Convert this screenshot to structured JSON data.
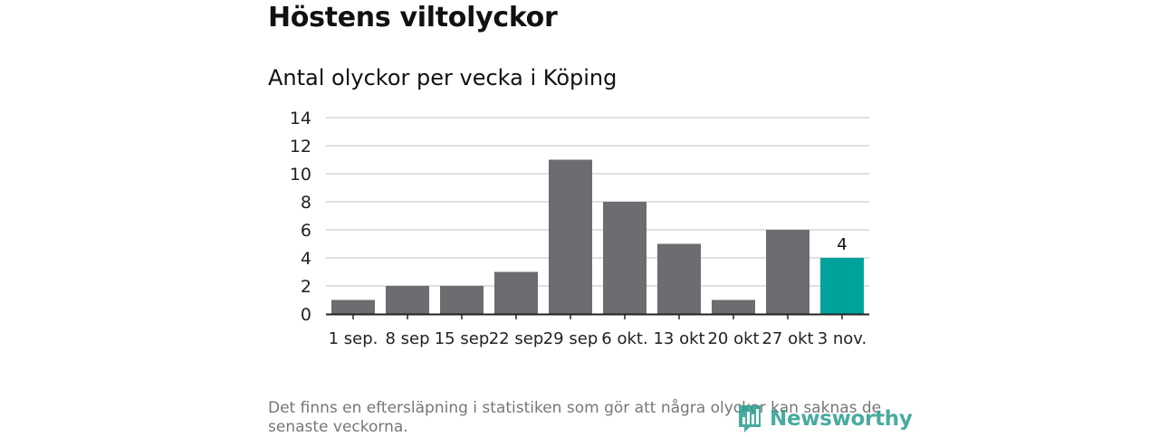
{
  "title": "Höstens viltolyckor",
  "subtitle": "Antal olyckor per vecka i Köping",
  "note": "Det finns en eftersläpning i statistiken som gör att några olyckor kan saknas de senaste veckorna.",
  "logo_text": "Newsworthy",
  "colors": {
    "bar": "#6d6c70",
    "highlight": "#00a39b",
    "grid": "#d6d6d6",
    "axis": "#222222"
  },
  "chart_data": {
    "type": "bar",
    "categories": [
      "1 sep.",
      "8 sep",
      "15 sep",
      "22 sep",
      "29 sep",
      "6 okt.",
      "13 okt",
      "20 okt",
      "27 okt",
      "3 nov."
    ],
    "values": [
      1,
      2,
      2,
      3,
      11,
      8,
      5,
      1,
      6,
      4
    ],
    "highlight_index": 9,
    "data_labels": [
      {
        "index": 9,
        "text": "4"
      }
    ],
    "yticks": [
      0,
      2,
      4,
      6,
      8,
      10,
      12,
      14
    ],
    "ylim": [
      0,
      14
    ],
    "grid": true,
    "legend": false
  }
}
